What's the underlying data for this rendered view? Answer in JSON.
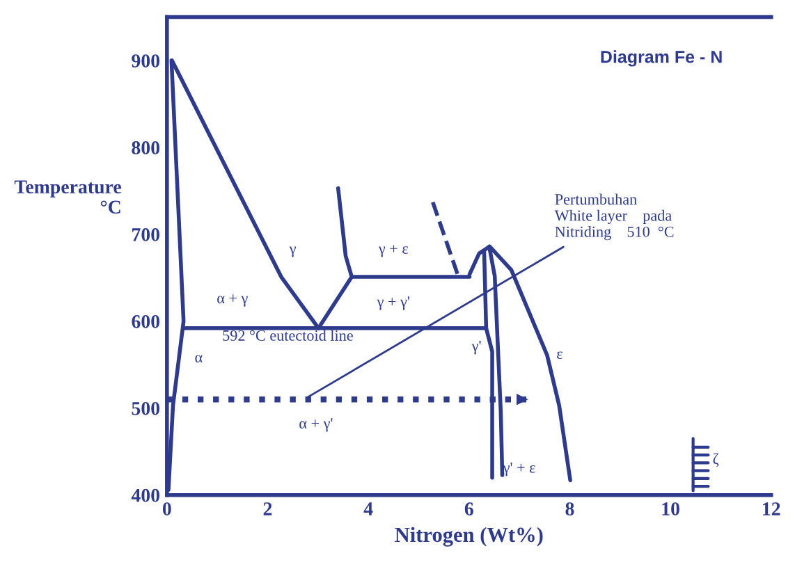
{
  "chart_data": {
    "type": "line",
    "title": "Diagram Fe - N",
    "xlabel": "Nitrogen (Wt%)",
    "ylabel": "Temperature\n°C",
    "xlim": [
      0,
      12
    ],
    "xticks": [
      0,
      2,
      4,
      6,
      8,
      10,
      12
    ],
    "ylim": [
      400,
      950
    ],
    "yticks": [
      400,
      500,
      600,
      700,
      800,
      900
    ],
    "grid": false,
    "legend": false,
    "series": [
      {
        "color": "#2e3a8c",
        "x": [
          0.09,
          0.33,
          0.12,
          0.03
        ],
        "values": [
          900,
          600,
          503,
          406
        ]
      },
      {
        "color": "#2e3a8c",
        "x": [
          0.1,
          2.27,
          3.01
        ],
        "values": [
          900,
          651,
          592
        ]
      },
      {
        "color": "#2e3a8c",
        "x": [
          3.01,
          3.67,
          3.55,
          3.4
        ],
        "values": [
          592,
          651,
          675,
          753
        ]
      },
      {
        "color": "#2e3a8c",
        "x": [
          3.67,
          6.01
        ],
        "values": [
          651,
          651
        ]
      },
      {
        "color": "#2e3a8c",
        "x": [
          0.33,
          6.34
        ],
        "values": [
          592,
          592
        ]
      },
      {
        "color": "#2e3a8c",
        "x": [
          6.3,
          6.34,
          6.46,
          6.46
        ],
        "values": [
          680,
          592,
          565,
          420
        ]
      },
      {
        "color": "#2e3a8c",
        "x": [
          6.4,
          6.51,
          6.63,
          6.66
        ],
        "values": [
          686,
          652,
          496,
          423
        ]
      },
      {
        "color": "#2e3a8c",
        "x": [
          6.01,
          6.2,
          6.41,
          6.84,
          7.55,
          7.79,
          8.01
        ],
        "values": [
          654,
          678,
          686,
          659,
          561,
          503,
          417
        ]
      },
      {
        "color": "#2e3a8c",
        "x": [
          5.28,
          5.79
        ],
        "values": [
          737,
          651
        ],
        "line_style": "dashed"
      },
      {
        "color": "#2e3a8c",
        "x": [
          0,
          7.25
        ],
        "values": [
          510,
          510
        ],
        "line_style": "dotted"
      }
    ],
    "annotations": [
      "γ",
      "γ + ε",
      "α + γ",
      "γ + γ'",
      "592 °C eutectoid line",
      "α",
      "γ'",
      "α + γ'",
      "γ' + ε",
      "ε",
      "ζ",
      {
        "text": "Pertumbuhan\nWhite layer    pada\nNitriding    510  °C",
        "x": 2.72,
        "y": 510
      }
    ]
  }
}
